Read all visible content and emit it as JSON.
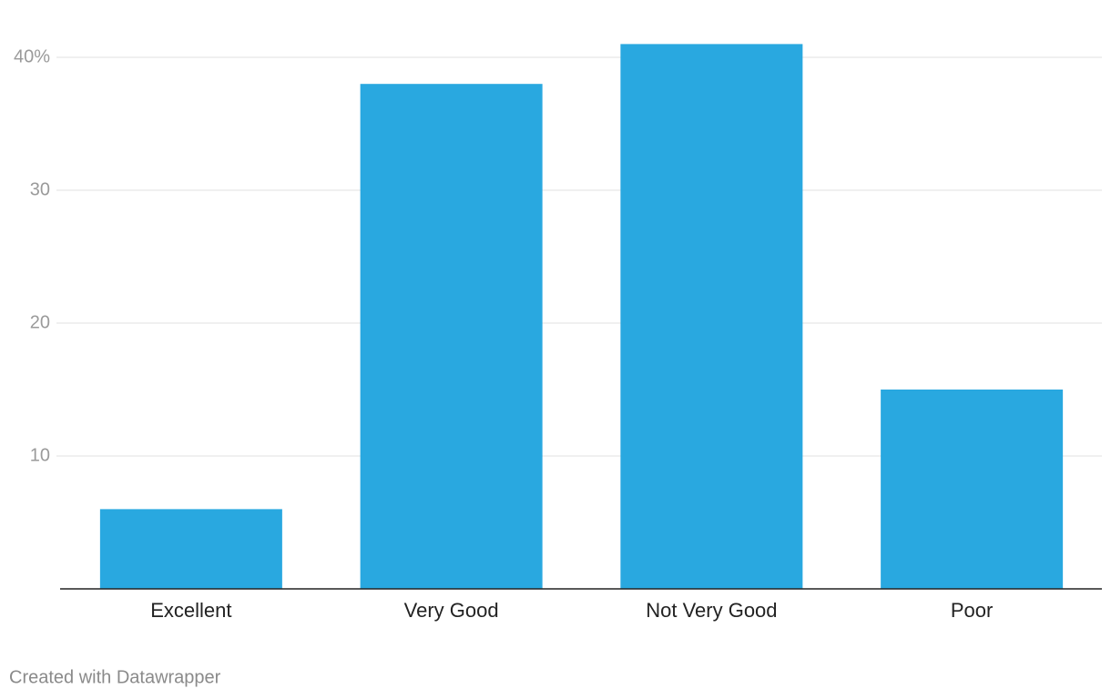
{
  "chart_data": {
    "type": "bar",
    "categories": [
      "Excellent",
      "Very Good",
      "Not Very Good",
      "Poor"
    ],
    "values": [
      6,
      38,
      41,
      15
    ],
    "color": "#29a8e0",
    "ylim": [
      0,
      40
    ],
    "yticks": [
      10,
      20,
      30,
      {
        "value": 40,
        "label": "40%"
      }
    ],
    "grid": true,
    "credit": "Created with Datawrapper"
  }
}
